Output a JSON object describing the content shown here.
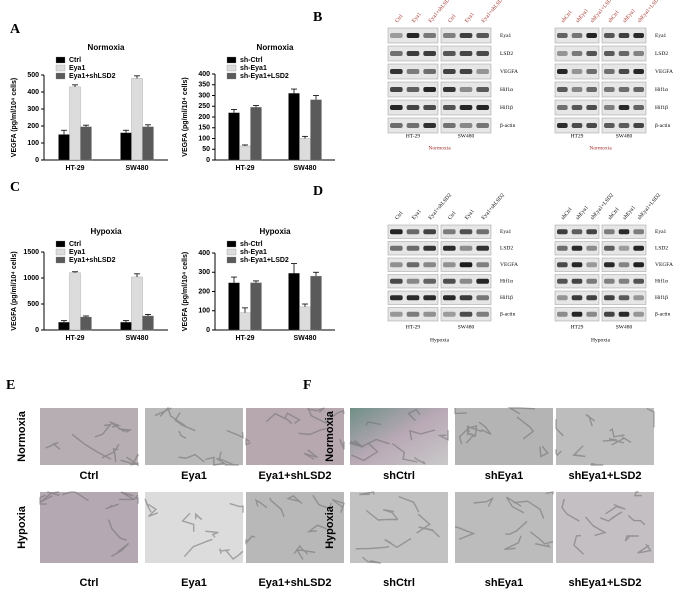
{
  "panel_labels": [
    "A",
    "B",
    "C",
    "D",
    "E",
    "F"
  ],
  "chart_data": [
    {
      "type": "bar",
      "title": "Normoxia",
      "y_label": "VEGFA (pg/ml/10⁴ cells)",
      "categories": [
        "HT-29",
        "SW480"
      ],
      "series": [
        {
          "name": "Ctrl",
          "color": "#000000",
          "values": [
            150,
            160
          ],
          "errors": [
            25,
            15
          ]
        },
        {
          "name": "Eya1",
          "color": "#dcdcdc",
          "values": [
            430,
            480
          ],
          "errors": [
            12,
            15
          ]
        },
        {
          "name": "Eya1+shLSD2",
          "color": "#5a5a5a",
          "values": [
            195,
            195
          ],
          "errors": [
            10,
            12
          ]
        }
      ],
      "ylim": [
        0,
        500
      ],
      "yticks": [
        0,
        100,
        200,
        300,
        400,
        500
      ],
      "legend": "upper left"
    },
    {
      "type": "bar",
      "title": "Normoxia",
      "y_label": "VEGFA (pg/ml/10⁴ cells)",
      "categories": [
        "HT-29",
        "SW480"
      ],
      "series": [
        {
          "name": "sh-Ctrl",
          "color": "#000000",
          "values": [
            220,
            310
          ],
          "errors": [
            15,
            20
          ]
        },
        {
          "name": "sh-Eya1",
          "color": "#dcdcdc",
          "values": [
            65,
            100
          ],
          "errors": [
            5,
            10
          ]
        },
        {
          "name": "sh-Eya1+LSD2",
          "color": "#5a5a5a",
          "values": [
            245,
            280
          ],
          "errors": [
            8,
            20
          ]
        }
      ],
      "ylim": [
        0,
        400
      ],
      "yticks": [
        0,
        50,
        100,
        150,
        200,
        250,
        300,
        350,
        400
      ],
      "legend": "upper left"
    },
    {
      "type": "bar",
      "title": "Hypoxia",
      "y_label": "VEGFA (pg/ml/10⁴ cells)",
      "categories": [
        "HT-29",
        "SW480"
      ],
      "series": [
        {
          "name": "Ctrl",
          "color": "#000000",
          "values": [
            150,
            150
          ],
          "errors": [
            30,
            30
          ]
        },
        {
          "name": "Eya1",
          "color": "#dcdcdc",
          "values": [
            1100,
            1020
          ],
          "errors": [
            20,
            60
          ]
        },
        {
          "name": "Eya1+shLSD2",
          "color": "#5a5a5a",
          "values": [
            250,
            270
          ],
          "errors": [
            20,
            30
          ]
        }
      ],
      "ylim": [
        0,
        1500
      ],
      "yticks": [
        0,
        500,
        1000,
        1500
      ],
      "legend": "upper left"
    },
    {
      "type": "bar",
      "title": "Hypoxia",
      "y_label": "VEGFA (pg/ml/10⁴ cells)",
      "categories": [
        "HT-29",
        "SW480"
      ],
      "series": [
        {
          "name": "sh-Ctrl",
          "color": "#000000",
          "values": [
            245,
            295
          ],
          "errors": [
            30,
            50
          ]
        },
        {
          "name": "sh-Eya1",
          "color": "#dcdcdc",
          "values": [
            90,
            120
          ],
          "errors": [
            25,
            15
          ]
        },
        {
          "name": "sh-Eya1+LSD2",
          "color": "#5a5a5a",
          "values": [
            245,
            280
          ],
          "errors": [
            10,
            20
          ]
        }
      ],
      "ylim": [
        0,
        400
      ],
      "yticks": [
        0,
        100,
        200,
        300,
        400
      ],
      "legend": "upper left"
    }
  ],
  "blots": [
    {
      "lanes": [
        "Ctrl",
        "Eya1",
        "Eya1+shLSD2",
        "Ctrl",
        "Eya1",
        "Eya1+shLSD2"
      ],
      "rows": [
        "Eya1",
        "LSD2",
        "VEGFA",
        "Hif1α",
        "Hif1β",
        "β-actin"
      ],
      "cells": [
        "HT-29",
        "SW480"
      ],
      "condition": "Normoxia"
    },
    {
      "lanes": [
        "shCtrl",
        "shEya1",
        "shEya1+LSD2",
        "shCtrl",
        "shEya1",
        "shEya1+LSD2"
      ],
      "rows": [
        "Eya1",
        "LSD2",
        "VEGFA",
        "Hif1α",
        "Hif1β",
        "β-actin"
      ],
      "cells": [
        "HT29",
        "SW480"
      ],
      "condition": "Normoxia"
    },
    {
      "lanes": [
        "Ctrl",
        "Eya1",
        "Eya1+shLSD2",
        "Ctrl",
        "Eya1",
        "Eya1+shLSD2"
      ],
      "rows": [
        "Eya1",
        "LSD2",
        "VEGFA",
        "Hif1α",
        "Hif1β",
        "β-actin"
      ],
      "cells": [
        "HT-29",
        "SW480"
      ],
      "condition": "Hypoxia"
    },
    {
      "lanes": [
        "shCtrl",
        "shEya1",
        "shEya1+LSD2",
        "shCtrl",
        "shEya1",
        "shEya1+LSD2"
      ],
      "rows": [
        "Eya1",
        "LSD2",
        "VEGFA",
        "Hif1α",
        "Hif1β",
        "β-actin"
      ],
      "cells": [
        "HT29",
        "SW480"
      ],
      "condition": "Hypoxia"
    }
  ],
  "images": [
    {
      "rows": [
        "Normoxia",
        "Hypoxia"
      ],
      "captions": [
        [
          "Ctrl",
          "Eya1",
          "Eya1+shLSD2"
        ],
        [
          "Ctrl",
          "Eya1",
          "Eya1+shLSD2"
        ]
      ]
    },
    {
      "rows": [
        "Normoxia",
        "Hypoxia"
      ],
      "captions": [
        [
          "shCtrl",
          "shEya1",
          "shEya1+LSD2"
        ],
        [
          "shCtrl",
          "shEya1",
          "shEya1+LSD2"
        ]
      ]
    }
  ]
}
